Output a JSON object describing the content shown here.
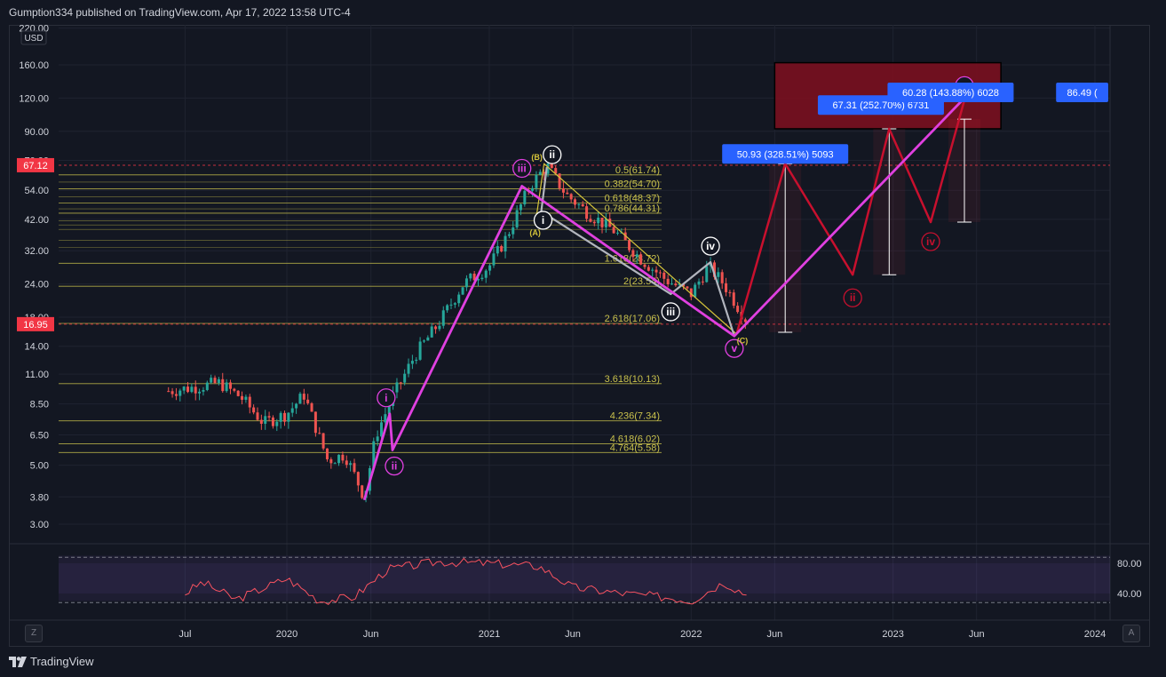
{
  "header": {
    "published_by": "Gumption334 published on TradingView.com, Apr 17, 2022 13:58 UTC-4"
  },
  "footer": {
    "brand": "TradingView"
  },
  "buttons": {
    "z": "Z",
    "a": "A"
  },
  "colors": {
    "background": "#131722",
    "fib_line": "#c9c14c",
    "fib_text": "#c9c14c",
    "wave_pink": "#e040e0",
    "wave_red": "#c8102e",
    "wave_grey": "#b2b5be",
    "wave_yellow": "#d4c33a",
    "box_fill": "#7a0f1f",
    "label_blue": "#2962ff",
    "price_tag_red": "#f23645",
    "rsi_line": "#f7525f",
    "rsi_band": "#7e57c2",
    "candle_up": "#26a69a",
    "candle_down": "#ef5350"
  },
  "chart_data": {
    "type": "candlestick",
    "symbol_currency": "USD",
    "y_scale": "log",
    "y_ticks": [
      "220.00",
      "160.00",
      "120.00",
      "90.00",
      "70.00",
      "54.00",
      "42.00",
      "32.00",
      "24.00",
      "18.00",
      "14.00",
      "11.00",
      "8.50",
      "6.50",
      "5.00",
      "3.80",
      "3.00"
    ],
    "y_tick_values": [
      220,
      160,
      120,
      90,
      70,
      54,
      42,
      32,
      24,
      18,
      14,
      11,
      8.5,
      6.5,
      5,
      3.8,
      3
    ],
    "x_ticks": [
      "Jul",
      "2020",
      "Jun",
      "2021",
      "Jun",
      "2022",
      "Jun",
      "2023",
      "Jun",
      "2024"
    ],
    "x_tick_dates": [
      "2019-07-01",
      "2020-01-01",
      "2020-06-01",
      "2021-01-01",
      "2021-06-01",
      "2022-01-01",
      "2022-06-01",
      "2023-01-01",
      "2023-06-01",
      "2024-01-01"
    ],
    "price_tags": [
      {
        "label": "67.12",
        "value": 67.12,
        "color": "#f23645"
      },
      {
        "label": "16.95",
        "value": 16.95,
        "color": "#f23645"
      }
    ],
    "price_series": [
      {
        "date": "2019-06-01",
        "price": 9.5
      },
      {
        "date": "2019-07-15",
        "price": 9.8
      },
      {
        "date": "2019-09-01",
        "price": 10.2
      },
      {
        "date": "2019-10-10",
        "price": 9.0
      },
      {
        "date": "2019-11-20",
        "price": 7.2
      },
      {
        "date": "2020-01-01",
        "price": 7.8
      },
      {
        "date": "2020-02-01",
        "price": 9.2
      },
      {
        "date": "2020-03-15",
        "price": 5.2
      },
      {
        "date": "2020-04-15",
        "price": 5.5
      },
      {
        "date": "2020-05-20",
        "price": 3.8
      },
      {
        "date": "2020-06-10",
        "price": 6.5
      },
      {
        "date": "2020-07-10",
        "price": 9.0
      },
      {
        "date": "2020-08-20",
        "price": 13.0
      },
      {
        "date": "2020-10-01",
        "price": 17.0
      },
      {
        "date": "2020-11-15",
        "price": 24.0
      },
      {
        "date": "2021-01-01",
        "price": 28.0
      },
      {
        "date": "2021-02-01",
        "price": 36.0
      },
      {
        "date": "2021-03-15",
        "price": 56.0
      },
      {
        "date": "2021-04-15",
        "price": 67.0
      },
      {
        "date": "2021-05-20",
        "price": 52.0
      },
      {
        "date": "2021-07-01",
        "price": 44.0
      },
      {
        "date": "2021-08-15",
        "price": 38.0
      },
      {
        "date": "2021-10-01",
        "price": 30.0
      },
      {
        "date": "2021-11-15",
        "price": 25.0
      },
      {
        "date": "2022-01-01",
        "price": 22.0
      },
      {
        "date": "2022-02-01",
        "price": 28.0
      },
      {
        "date": "2022-03-01",
        "price": 24.0
      },
      {
        "date": "2022-04-15",
        "price": 17.0
      }
    ],
    "rsi": {
      "levels": [
        "80.00",
        "40.00"
      ],
      "level_values": [
        80,
        40
      ],
      "values": [
        {
          "date": "2019-07-01",
          "v": 40
        },
        {
          "date": "2019-08-01",
          "v": 55
        },
        {
          "date": "2019-10-01",
          "v": 32
        },
        {
          "date": "2020-01-01",
          "v": 60
        },
        {
          "date": "2020-03-01",
          "v": 30
        },
        {
          "date": "2020-05-01",
          "v": 35
        },
        {
          "date": "2020-07-01",
          "v": 72
        },
        {
          "date": "2020-10-01",
          "v": 82
        },
        {
          "date": "2021-01-01",
          "v": 80
        },
        {
          "date": "2021-04-01",
          "v": 76
        },
        {
          "date": "2021-06-01",
          "v": 48
        },
        {
          "date": "2021-09-01",
          "v": 40
        },
        {
          "date": "2021-12-01",
          "v": 34
        },
        {
          "date": "2022-01-01",
          "v": 30
        },
        {
          "date": "2022-03-01",
          "v": 55
        },
        {
          "date": "2022-04-15",
          "v": 37
        }
      ]
    },
    "fib_levels": [
      {
        "label": "0.5(61.74)",
        "value": 61.74
      },
      {
        "label": "0.382(54.70)",
        "value": 54.7
      },
      {
        "label": "0.618(48.37)",
        "value": 48.37
      },
      {
        "label": "0.786(44.31)",
        "value": 44.31
      },
      {
        "label": "1.618(28.72)",
        "value": 28.72
      },
      {
        "label": "2(23.54)",
        "value": 23.54
      },
      {
        "label": "2.618(17.06)",
        "value": 17.06
      },
      {
        "label": "3.618(10.13)",
        "value": 10.13
      },
      {
        "label": "4.236(7.34)",
        "value": 7.34
      },
      {
        "label": "4.618(6.02)",
        "value": 6.02
      },
      {
        "label": "4.764(5.58)",
        "value": 5.58
      }
    ],
    "pink_wave": [
      {
        "date": "2020-05-20",
        "price": 3.7,
        "label": ""
      },
      {
        "date": "2020-07-05",
        "price": 7.8,
        "label": "i"
      },
      {
        "date": "2020-07-10",
        "price": 5.7,
        "label": "ii"
      },
      {
        "date": "2021-03-01",
        "price": 56,
        "label": "iii"
      },
      {
        "date": "2022-03-20",
        "price": 15.3,
        "label": "v"
      },
      {
        "date": "2023-05-10",
        "price": 120,
        "label": "v"
      }
    ],
    "red_wave": [
      {
        "date": "2022-03-25",
        "price": 15.8,
        "label": ""
      },
      {
        "date": "2022-06-20",
        "price": 68,
        "label": ""
      },
      {
        "date": "2022-10-20",
        "price": 26,
        "label": "ii"
      },
      {
        "date": "2022-12-25",
        "price": 92,
        "label": ""
      },
      {
        "date": "2023-03-10",
        "price": 41,
        "label": "iv"
      },
      {
        "date": "2023-05-10",
        "price": 118,
        "label": ""
      }
    ],
    "grey_wave": [
      {
        "date": "2021-04-15",
        "price": 66,
        "label": "ii"
      },
      {
        "date": "2021-04-05",
        "price": 45,
        "label": "i"
      },
      {
        "date": "2021-11-25",
        "price": 22,
        "label": "iii"
      },
      {
        "date": "2022-02-05",
        "price": 29,
        "label": "iv"
      },
      {
        "date": "2022-03-20",
        "price": 15.3,
        "label": ""
      }
    ],
    "yellow_wave": [
      {
        "date": "2021-03-25",
        "price": 40,
        "label": "(A)"
      },
      {
        "date": "2021-04-10",
        "price": 68,
        "label": "(B)"
      },
      {
        "date": "2022-03-25",
        "price": 15.5,
        "label": "(C)"
      }
    ],
    "box": {
      "date_from": "2022-06-01",
      "date_to": "2023-07-15",
      "price_low": 92,
      "price_high": 163
    },
    "projection_labels": [
      {
        "text": "50.93 (328.51%) 5093",
        "date": "2022-06-20",
        "price": 74
      },
      {
        "text": "67.31 (252.70%) 6731",
        "date": "2022-12-10",
        "price": 113
      },
      {
        "text": "60.28 (143.88%) 6028",
        "date": "2023-04-15",
        "price": 126
      },
      {
        "text": "86.49 (",
        "date": "2024-01-15",
        "price": 126
      }
    ],
    "measure_bars": [
      {
        "date": "2022-06-20",
        "from": 15.8,
        "to": 68
      },
      {
        "date": "2022-12-25",
        "from": 26,
        "to": 92
      },
      {
        "date": "2023-05-10",
        "from": 41,
        "to": 100
      }
    ]
  }
}
